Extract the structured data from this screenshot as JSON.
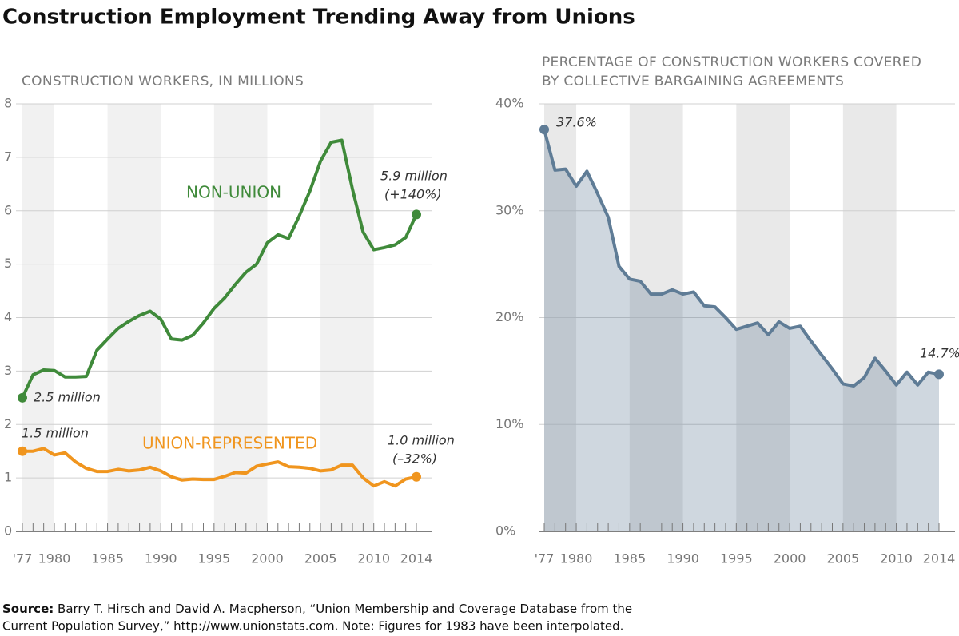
{
  "title": "Construction Employment Trending Away from Unions",
  "chart_data": [
    {
      "type": "line",
      "title": "CONSTRUCTION WORKERS, IN MILLIONS",
      "x": [
        1977,
        1978,
        1979,
        1980,
        1981,
        1982,
        1983,
        1984,
        1985,
        1986,
        1987,
        1988,
        1989,
        1990,
        1991,
        1992,
        1993,
        1994,
        1995,
        1996,
        1997,
        1998,
        1999,
        2000,
        2001,
        2002,
        2003,
        2004,
        2005,
        2006,
        2007,
        2008,
        2009,
        2010,
        2011,
        2012,
        2013,
        2014
      ],
      "xlim": [
        1977,
        2014
      ],
      "xticks": [
        {
          "value": 1977,
          "label": "'77"
        },
        1980,
        1985,
        1990,
        1995,
        2000,
        2005,
        2010,
        2014
      ],
      "ylim": [
        0,
        8
      ],
      "yticks": [
        0,
        1,
        2,
        3,
        4,
        5,
        6,
        7,
        8
      ],
      "grid": true,
      "series": [
        {
          "name": "NON-UNION",
          "color": "#3f8a3a",
          "values": [
            2.5,
            2.93,
            3.02,
            3.01,
            2.89,
            2.89,
            2.9,
            3.39,
            3.6,
            3.8,
            3.93,
            4.04,
            4.12,
            3.97,
            3.6,
            3.58,
            3.67,
            3.9,
            4.17,
            4.37,
            4.62,
            4.85,
            5.0,
            5.4,
            5.55,
            5.48,
            5.9,
            6.37,
            6.93,
            7.28,
            7.32,
            6.4,
            5.6,
            5.27,
            5.31,
            5.36,
            5.5,
            5.93
          ]
        },
        {
          "name": "UNION-REPRESENTED",
          "color": "#f0951e",
          "values": [
            1.5,
            1.5,
            1.55,
            1.43,
            1.47,
            1.3,
            1.18,
            1.12,
            1.12,
            1.16,
            1.13,
            1.15,
            1.2,
            1.13,
            1.02,
            0.96,
            0.98,
            0.97,
            0.97,
            1.03,
            1.1,
            1.09,
            1.22,
            1.26,
            1.3,
            1.21,
            1.2,
            1.18,
            1.13,
            1.15,
            1.24,
            1.24,
            1.0,
            0.85,
            0.93,
            0.85,
            0.98,
            1.02
          ]
        }
      ],
      "annotations": [
        "2.5 million",
        "5.9 million",
        "(+140%)",
        "1.5 million",
        "1.0 million",
        "(–32%)"
      ]
    },
    {
      "type": "area",
      "title": [
        "PERCENTAGE OF CONSTRUCTION WORKERS COVERED",
        "BY COLLECTIVE BARGAINING AGREEMENTS"
      ],
      "x": [
        1977,
        1978,
        1979,
        1980,
        1981,
        1982,
        1983,
        1984,
        1985,
        1986,
        1987,
        1988,
        1989,
        1990,
        1991,
        1992,
        1993,
        1994,
        1995,
        1996,
        1997,
        1998,
        1999,
        2000,
        2001,
        2002,
        2003,
        2004,
        2005,
        2006,
        2007,
        2008,
        2009,
        2010,
        2011,
        2012,
        2013,
        2014
      ],
      "xlim": [
        1977,
        2014
      ],
      "xticks": [
        {
          "value": 1977,
          "label": "'77"
        },
        1980,
        1985,
        1990,
        1995,
        2000,
        2005,
        2010,
        2014
      ],
      "ylim": [
        0,
        40
      ],
      "yticks": [
        {
          "value": 0,
          "label": "0%"
        },
        {
          "value": 10,
          "label": "10%"
        },
        {
          "value": 20,
          "label": "20%"
        },
        {
          "value": 30,
          "label": "30%"
        },
        {
          "value": 40,
          "label": "40%"
        }
      ],
      "grid": true,
      "color": "#5f7c96",
      "values": [
        37.6,
        33.8,
        33.9,
        32.3,
        33.7,
        31.6,
        29.4,
        24.8,
        23.6,
        23.4,
        22.2,
        22.2,
        22.6,
        22.2,
        22.4,
        21.1,
        21.0,
        20.0,
        18.9,
        19.2,
        19.5,
        18.4,
        19.6,
        19.0,
        19.2,
        17.8,
        16.5,
        15.2,
        13.8,
        13.6,
        14.4,
        16.2,
        15.0,
        13.7,
        14.9,
        13.7,
        14.9,
        14.7
      ],
      "annotations": [
        "37.6%",
        "14.7%"
      ]
    }
  ],
  "source": {
    "label": "Source:",
    "lines": [
      "Barry T. Hirsch and David A. Macpherson, “Union Membership and Coverage Database from the",
      "Current Population Survey,” http://www.unionstats.com. Note: Figures for 1983 have been interpolated."
    ]
  }
}
